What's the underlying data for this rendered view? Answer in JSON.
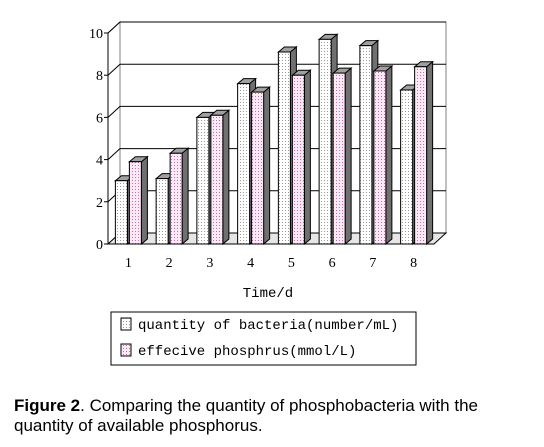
{
  "chart_data": {
    "type": "bar",
    "categories": [
      "1",
      "2",
      "3",
      "4",
      "5",
      "6",
      "7",
      "8"
    ],
    "series": [
      {
        "name": "quantity of bacteria(number/mL)",
        "values": [
          3.0,
          3.1,
          6.0,
          7.6,
          9.1,
          9.7,
          9.4,
          7.3
        ]
      },
      {
        "name": "effecive phosphrus(mmol/L)",
        "values": [
          3.9,
          4.3,
          6.1,
          7.2,
          8.0,
          8.1,
          8.2,
          8.4
        ]
      }
    ],
    "xlabel": "Time/d",
    "ylabel": "",
    "ylim": [
      0,
      10
    ],
    "yticks": [
      "0",
      "2",
      "4",
      "6",
      "8",
      "10"
    ],
    "grid": true,
    "legend": "bottom",
    "colors": {
      "series1_fill": "#f2f2f2",
      "series2_fill": "#f4dcee",
      "edge": "#000000",
      "side": "#808080"
    }
  },
  "caption": {
    "label": "Figure 2",
    "text": ". Comparing the quantity of phosphobacteria with the quantity of available phosphorus."
  }
}
